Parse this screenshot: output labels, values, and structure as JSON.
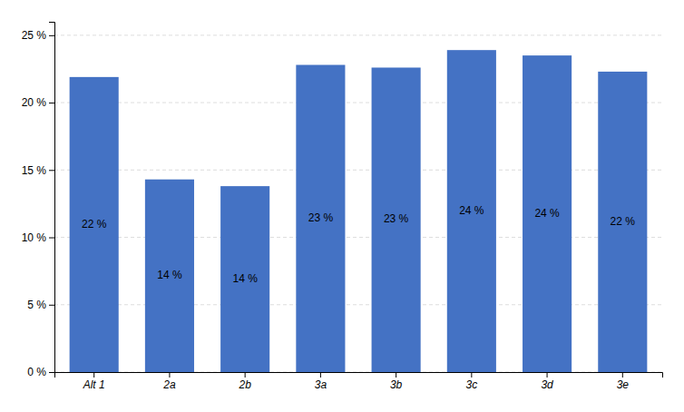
{
  "chart_data": {
    "type": "bar",
    "categories": [
      "Alt 1",
      "2a",
      "2b",
      "3a",
      "3b",
      "3c",
      "3d",
      "3e"
    ],
    "values": [
      0.219,
      0.143,
      0.138,
      0.228,
      0.226,
      0.239,
      0.235,
      0.223
    ],
    "value_labels": [
      "22 %",
      "14 %",
      "14 %",
      "23 %",
      "23 %",
      "24 %",
      "24 %",
      "22 %"
    ],
    "data_labels": true,
    "color": "#4472C4",
    "ylim": [
      0,
      0.26
    ],
    "yticks": [
      {
        "value": 0,
        "label": "0 %"
      },
      {
        "value": 0.05,
        "label": "5 %"
      },
      {
        "value": 0.1,
        "label": "10 %"
      },
      {
        "value": 0.15,
        "label": "15 %"
      },
      {
        "value": 0.2,
        "label": "20 %"
      },
      {
        "value": 0.25,
        "label": "25 %"
      }
    ],
    "grid": true
  }
}
